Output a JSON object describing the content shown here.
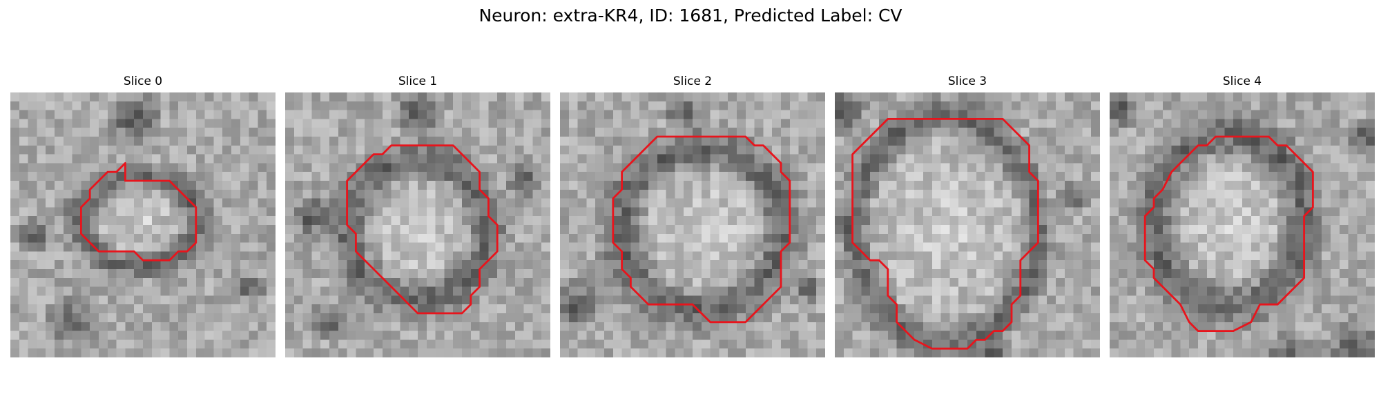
{
  "figure": {
    "title": "Neuron: extra-KR4, ID: 1681, Predicted Label: CV"
  },
  "panels": [
    {
      "title": "Slice 0",
      "contour": [
        [
          13,
          10
        ],
        [
          18,
          10
        ],
        [
          21,
          13
        ],
        [
          21,
          17
        ],
        [
          20,
          18
        ],
        [
          19,
          18
        ],
        [
          18,
          19
        ],
        [
          15,
          19
        ],
        [
          14,
          18
        ],
        [
          10,
          18
        ],
        [
          9,
          17
        ],
        [
          8,
          16
        ],
        [
          8,
          13
        ],
        [
          9,
          12
        ],
        [
          9,
          11
        ],
        [
          10,
          10
        ],
        [
          11,
          9
        ],
        [
          12,
          9
        ],
        [
          13,
          8
        ]
      ],
      "bright": {
        "cx": 14.5,
        "cy": 14.5,
        "rx": 5.5,
        "ry": 4.2
      },
      "ring": 2.0,
      "dark_spots": [
        [
          14,
          3,
          2.2
        ],
        [
          7,
          26,
          2.0
        ],
        [
          3,
          16,
          1.5
        ],
        [
          27,
          22,
          1.3
        ]
      ]
    },
    {
      "title": "Slice 1",
      "contour": [
        [
          14,
          6
        ],
        [
          19,
          6
        ],
        [
          20,
          7
        ],
        [
          21,
          8
        ],
        [
          22,
          9
        ],
        [
          22,
          11
        ],
        [
          23,
          12
        ],
        [
          23,
          14
        ],
        [
          24,
          15
        ],
        [
          24,
          18
        ],
        [
          23,
          19
        ],
        [
          22,
          20
        ],
        [
          22,
          22
        ],
        [
          21,
          23
        ],
        [
          21,
          24
        ],
        [
          20,
          25
        ],
        [
          15,
          25
        ],
        [
          14,
          24
        ],
        [
          13,
          23
        ],
        [
          9,
          19
        ],
        [
          8,
          18
        ],
        [
          8,
          16
        ],
        [
          7,
          15
        ],
        [
          7,
          10
        ],
        [
          8,
          9
        ],
        [
          9,
          8
        ],
        [
          10,
          7
        ],
        [
          11,
          7
        ],
        [
          12,
          6
        ],
        [
          13,
          6
        ]
      ],
      "bright": {
        "cx": 15.0,
        "cy": 15.5,
        "rx": 6.5,
        "ry": 6.5
      },
      "ring": 2.2,
      "dark_spots": [
        [
          15,
          2,
          2.0
        ],
        [
          3,
          14,
          1.8
        ],
        [
          27,
          10,
          1.5
        ],
        [
          5,
          26,
          1.6
        ]
      ]
    },
    {
      "title": "Slice 2",
      "contour": [
        [
          13,
          5
        ],
        [
          21,
          5
        ],
        [
          22,
          6
        ],
        [
          23,
          6
        ],
        [
          24,
          7
        ],
        [
          25,
          8
        ],
        [
          25,
          9
        ],
        [
          26,
          10
        ],
        [
          26,
          12
        ],
        [
          26,
          17
        ],
        [
          25,
          18
        ],
        [
          25,
          22
        ],
        [
          24,
          23
        ],
        [
          22,
          25
        ],
        [
          21,
          26
        ],
        [
          17,
          26
        ],
        [
          16,
          25
        ],
        [
          15,
          24
        ],
        [
          10,
          24
        ],
        [
          9,
          23
        ],
        [
          8,
          22
        ],
        [
          8,
          21
        ],
        [
          7,
          20
        ],
        [
          7,
          18
        ],
        [
          6,
          17
        ],
        [
          6,
          16
        ],
        [
          6,
          12
        ],
        [
          7,
          11
        ],
        [
          7,
          9
        ],
        [
          9,
          7
        ],
        [
          10,
          6
        ],
        [
          11,
          5
        ],
        [
          12,
          5
        ]
      ],
      "bright": {
        "cx": 16.0,
        "cy": 15.5,
        "rx": 7.5,
        "ry": 7.5
      },
      "ring": 2.0,
      "dark_spots": [
        [
          2,
          24,
          2.0
        ],
        [
          14,
          2,
          1.6
        ],
        [
          28,
          22,
          1.3
        ]
      ]
    },
    {
      "title": "Slice 3",
      "contour": [
        [
          6,
          3
        ],
        [
          19,
          3
        ],
        [
          20,
          4
        ],
        [
          21,
          5
        ],
        [
          22,
          6
        ],
        [
          22,
          9
        ],
        [
          23,
          10
        ],
        [
          23,
          17
        ],
        [
          22,
          18
        ],
        [
          21,
          19
        ],
        [
          21,
          23
        ],
        [
          20,
          24
        ],
        [
          20,
          26
        ],
        [
          19,
          27
        ],
        [
          18,
          27
        ],
        [
          17,
          28
        ],
        [
          16,
          28
        ],
        [
          15,
          29
        ],
        [
          14,
          29
        ],
        [
          12,
          29
        ],
        [
          11,
          29
        ],
        [
          9,
          28
        ],
        [
          8,
          27
        ],
        [
          7,
          26
        ],
        [
          7,
          24
        ],
        [
          6,
          23
        ],
        [
          6,
          20
        ],
        [
          5,
          19
        ],
        [
          4,
          19
        ],
        [
          3,
          18
        ],
        [
          2,
          17
        ],
        [
          2,
          7
        ],
        [
          3,
          6
        ],
        [
          4,
          5
        ],
        [
          5,
          4
        ]
      ],
      "bright": {
        "cx": 12.5,
        "cy": 15.5,
        "rx": 8.5,
        "ry": 10.5
      },
      "ring": 1.2,
      "dark_spots": [
        [
          1,
          2,
          1.8
        ],
        [
          27,
          12,
          1.3
        ],
        [
          1,
          15,
          1.0
        ],
        [
          18,
          30,
          1.2
        ]
      ]
    },
    {
      "title": "Slice 4",
      "contour": [
        [
          12,
          5
        ],
        [
          18,
          5
        ],
        [
          19,
          6
        ],
        [
          20,
          6
        ],
        [
          21,
          7
        ],
        [
          22,
          8
        ],
        [
          23,
          9
        ],
        [
          23,
          13
        ],
        [
          22,
          14
        ],
        [
          22,
          16
        ],
        [
          22,
          21
        ],
        [
          21,
          22
        ],
        [
          20,
          23
        ],
        [
          19,
          24
        ],
        [
          17,
          24
        ],
        [
          16,
          26
        ],
        [
          14,
          27
        ],
        [
          13,
          27
        ],
        [
          12,
          27
        ],
        [
          10,
          27
        ],
        [
          9,
          26
        ],
        [
          8,
          24
        ],
        [
          6,
          22
        ],
        [
          5,
          21
        ],
        [
          5,
          20
        ],
        [
          4,
          19
        ],
        [
          4,
          14
        ],
        [
          5,
          13
        ],
        [
          5,
          12
        ],
        [
          6,
          11
        ],
        [
          7,
          9
        ],
        [
          8,
          8
        ],
        [
          9,
          7
        ],
        [
          10,
          6
        ],
        [
          11,
          6
        ]
      ],
      "bright": {
        "cx": 13.5,
        "cy": 14.5,
        "rx": 7.0,
        "ry": 8.0
      },
      "ring": 2.0,
      "dark_spots": [
        [
          1,
          2,
          1.5
        ],
        [
          28,
          29,
          2.5
        ],
        [
          20,
          30,
          2.0
        ],
        [
          29,
          5,
          1.5
        ]
      ]
    }
  ]
}
